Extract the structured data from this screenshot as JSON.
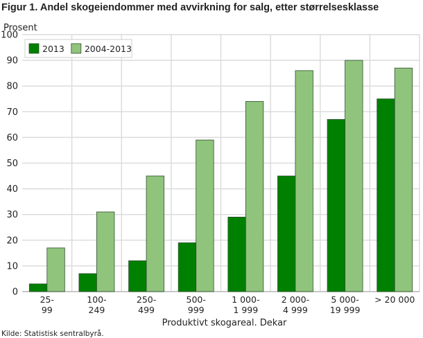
{
  "chart_data": {
    "type": "bar",
    "title": "Figur 1. Andel skogeiendommer med avvirkning for salg, etter størrelsesklasse",
    "ylabel": "Prosent",
    "xlabel": "Produktivt skogareal. Dekar",
    "ylim": [
      0,
      100
    ],
    "yticks": [
      0,
      10,
      20,
      30,
      40,
      50,
      60,
      70,
      80,
      90,
      100
    ],
    "categories": [
      [
        "25-",
        "99"
      ],
      [
        "100-",
        "249"
      ],
      [
        "250-",
        "499"
      ],
      [
        "500-",
        "999"
      ],
      [
        "1 000-",
        "1 999"
      ],
      [
        "2 000-",
        "4 999"
      ],
      [
        "5 000-",
        "19 999"
      ],
      [
        "> 20 000"
      ]
    ],
    "series": [
      {
        "name": "2013",
        "color": "#008000",
        "values": [
          3,
          7,
          12,
          19,
          29,
          45,
          67,
          75
        ]
      },
      {
        "name": "2004-2013",
        "color": "#90c47c",
        "values": [
          17,
          31,
          45,
          59,
          74,
          86,
          90,
          87
        ]
      }
    ],
    "grid": true,
    "legend": "top-left"
  },
  "source": "Kilde: Statistisk sentralbyrå."
}
